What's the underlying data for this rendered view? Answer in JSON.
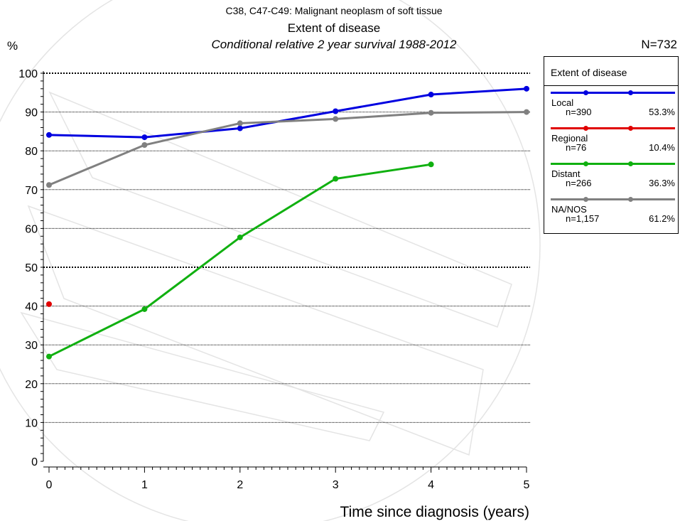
{
  "header": {
    "line1": "C38, C47-C49: Malignant neoplasm of soft tissue",
    "line2": "Extent of disease",
    "line3": "Conditional relative 2 year survival 1988-2012",
    "total": "N=732",
    "y_unit": "%"
  },
  "legend": {
    "title": "Extent of disease",
    "entries": [
      {
        "name": "Local",
        "n": "n=390",
        "pct": "53.3%",
        "color": "#0000e0"
      },
      {
        "name": "Regional",
        "n": "n=76",
        "pct": "10.4%",
        "color": "#e00000"
      },
      {
        "name": "Distant",
        "n": "n=266",
        "pct": "36.3%",
        "color": "#10b010"
      },
      {
        "name": "NA/NOS",
        "n": "n=1,157",
        "pct": "61.2%",
        "color": "#808080"
      }
    ]
  },
  "chart_data": {
    "type": "line",
    "title": "Extent of disease",
    "xlabel": "Time since diagnosis (years)",
    "ylabel": "%",
    "xlim": [
      0,
      5
    ],
    "ylim": [
      0,
      100
    ],
    "xticks": [
      "0",
      "1",
      "2",
      "3",
      "4",
      "5"
    ],
    "yticks": [
      "0",
      "10",
      "20",
      "30",
      "40",
      "50",
      "60",
      "70",
      "80",
      "90",
      "100"
    ],
    "grid": true,
    "legend_position": "right",
    "series": [
      {
        "name": "Local",
        "color": "#0000e0",
        "x": [
          0,
          1,
          2,
          3,
          4,
          5
        ],
        "y": [
          84.1,
          83.5,
          85.8,
          90.2,
          94.5,
          96.0
        ]
      },
      {
        "name": "Regional",
        "color": "#e00000",
        "x": [
          0
        ],
        "y": [
          40.5
        ]
      },
      {
        "name": "Distant",
        "color": "#10b010",
        "x": [
          0,
          1,
          2,
          3,
          4
        ],
        "y": [
          27.0,
          39.2,
          57.7,
          72.8,
          76.5
        ]
      },
      {
        "name": "NA/NOS",
        "color": "#808080",
        "x": [
          0,
          1,
          2,
          3,
          4,
          5
        ],
        "y": [
          71.2,
          81.5,
          87.1,
          88.2,
          89.8,
          90.0
        ]
      }
    ]
  }
}
